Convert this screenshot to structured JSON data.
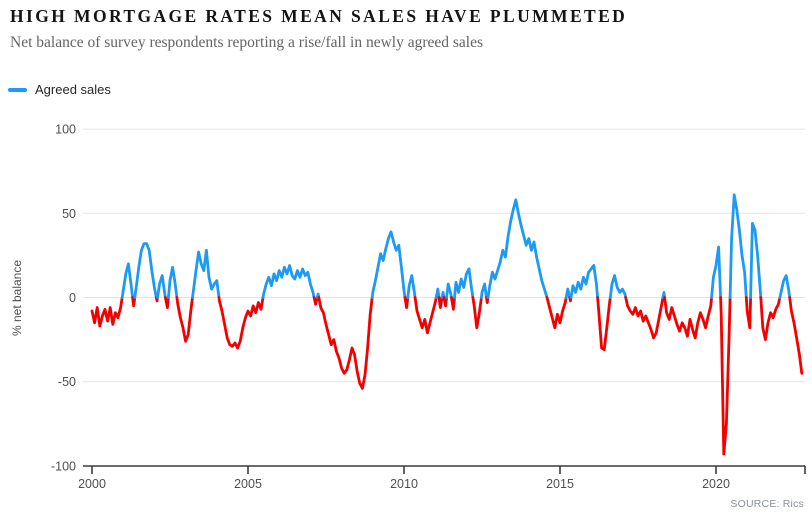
{
  "header": {
    "title": "HIGH MORTGAGE RATES MEAN SALES HAVE PLUMMETED",
    "subtitle": "Net balance of survey respondents reporting a rise/fall in newly agreed sales"
  },
  "legend": {
    "label": "Agreed sales",
    "color": "#1d9af1"
  },
  "source": "SOURCE: Rics",
  "colors": {
    "positive": "#1d9af1",
    "negative": "#f50000",
    "grid": "#e4e4e4",
    "axis": "#3c3c3c",
    "tick_text": "#4f4f4f"
  },
  "chart_data": {
    "type": "line",
    "title": "HIGH MORTGAGE RATES MEAN SALES HAVE PLUMMETED",
    "subtitle": "Net balance of survey respondents reporting a rise/fall in newly agreed sales",
    "xlabel": "",
    "ylabel": "% net balance",
    "ylim": [
      -100,
      100
    ],
    "xlim": [
      2000,
      2023
    ],
    "yticks": [
      100,
      50,
      0,
      -50,
      -100
    ],
    "xticks": [
      2000,
      2005,
      2010,
      2015,
      2020
    ],
    "grid": "horizontal",
    "legend_position": "top-left",
    "line_color_rule": "blue above zero, red below zero",
    "series": [
      {
        "name": "Agreed sales",
        "frequency": "monthly",
        "start_year": 2000,
        "start_month": 1,
        "values": [
          -8,
          -15,
          -6,
          -17,
          -11,
          -7,
          -14,
          -6,
          -16,
          -9,
          -12,
          -6,
          4,
          14,
          20,
          8,
          -5,
          6,
          18,
          28,
          32,
          32,
          28,
          16,
          6,
          -2,
          8,
          13,
          2,
          -6,
          10,
          18,
          8,
          -4,
          -12,
          -18,
          -26,
          -22,
          -8,
          4,
          16,
          27,
          20,
          16,
          28,
          12,
          5,
          8,
          10,
          -2,
          -8,
          -16,
          -24,
          -28,
          -29,
          -27,
          -30,
          -26,
          -18,
          -12,
          -8,
          -11,
          -5,
          -9,
          -3,
          -7,
          2,
          8,
          12,
          7,
          14,
          10,
          16,
          12,
          18,
          14,
          19,
          13,
          11,
          16,
          12,
          17,
          13,
          15,
          8,
          3,
          -4,
          2,
          -6,
          -9,
          -16,
          -22,
          -28,
          -25,
          -32,
          -36,
          -42,
          -45,
          -43,
          -37,
          -30,
          -34,
          -44,
          -51,
          -54,
          -46,
          -30,
          -10,
          3,
          10,
          18,
          26,
          22,
          29,
          35,
          39,
          33,
          28,
          31,
          18,
          4,
          -6,
          7,
          13,
          3,
          -8,
          -13,
          -18,
          -13,
          -21,
          -15,
          -9,
          -3,
          5,
          -6,
          3,
          -5,
          8,
          2,
          -7,
          9,
          3,
          11,
          6,
          14,
          17,
          5,
          -5,
          -18,
          -9,
          3,
          8,
          -3,
          7,
          15,
          11,
          16,
          21,
          28,
          24,
          36,
          45,
          52,
          58,
          50,
          43,
          37,
          31,
          35,
          28,
          33,
          24,
          17,
          10,
          5,
          0,
          -6,
          -12,
          -18,
          -10,
          -15,
          -8,
          -3,
          5,
          -2,
          7,
          3,
          9,
          5,
          12,
          8,
          15,
          17,
          19,
          8,
          -10,
          -30,
          -31,
          -18,
          -4,
          8,
          13,
          6,
          3,
          5,
          2,
          -5,
          -8,
          -10,
          -6,
          -11,
          -8,
          -14,
          -11,
          -15,
          -19,
          -24,
          -21,
          -13,
          -5,
          3,
          -9,
          -13,
          -6,
          -11,
          -16,
          -20,
          -15,
          -18,
          -23,
          -13,
          -19,
          -24,
          -15,
          -9,
          -13,
          -18,
          -11,
          -5,
          12,
          19,
          30,
          -10,
          -93,
          -75,
          -25,
          35,
          61,
          52,
          40,
          25,
          15,
          -8,
          -18,
          44,
          40,
          25,
          5,
          -18,
          -25,
          -15,
          -9,
          -12,
          -7,
          -4,
          3,
          10,
          13,
          4,
          -8,
          -15,
          -24,
          -33,
          -45
        ]
      }
    ]
  }
}
